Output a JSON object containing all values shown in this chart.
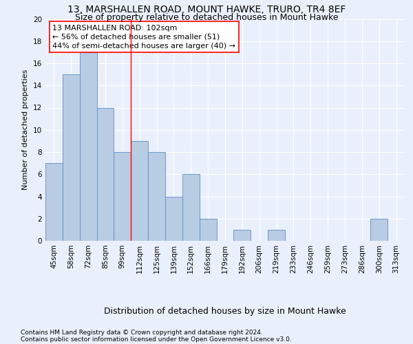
{
  "title": "13, MARSHALLEN ROAD, MOUNT HAWKE, TRURO, TR4 8EF",
  "subtitle": "Size of property relative to detached houses in Mount Hawke",
  "xlabel": "Distribution of detached houses by size in Mount Hawke",
  "ylabel": "Number of detached properties",
  "categories": [
    "45sqm",
    "58sqm",
    "72sqm",
    "85sqm",
    "99sqm",
    "112sqm",
    "125sqm",
    "139sqm",
    "152sqm",
    "166sqm",
    "179sqm",
    "192sqm",
    "206sqm",
    "219sqm",
    "233sqm",
    "246sqm",
    "259sqm",
    "273sqm",
    "286sqm",
    "300sqm",
    "313sqm"
  ],
  "values": [
    7,
    15,
    17,
    12,
    8,
    9,
    8,
    4,
    6,
    2,
    0,
    1,
    0,
    1,
    0,
    0,
    0,
    0,
    0,
    2,
    0
  ],
  "bar_color": "#b8cce4",
  "bar_edge_color": "#5b8cc8",
  "vline_x_index": 4.5,
  "vline_color": "red",
  "annotation_line1": "13 MARSHALLEN ROAD: 102sqm",
  "annotation_line2": "← 56% of detached houses are smaller (51)",
  "annotation_line3": "44% of semi-detached houses are larger (40) →",
  "annotation_box_color": "white",
  "annotation_box_edge_color": "red",
  "ylim": [
    0,
    20
  ],
  "yticks": [
    0,
    2,
    4,
    6,
    8,
    10,
    12,
    14,
    16,
    18,
    20
  ],
  "footer1": "Contains HM Land Registry data © Crown copyright and database right 2024.",
  "footer2": "Contains public sector information licensed under the Open Government Licence v3.0.",
  "bg_color": "#eaf0fb",
  "grid_color": "#ffffff",
  "title_fontsize": 10,
  "subtitle_fontsize": 9,
  "xlabel_fontsize": 9,
  "ylabel_fontsize": 8,
  "tick_fontsize": 7.5,
  "annotation_fontsize": 8,
  "footer_fontsize": 6.5
}
